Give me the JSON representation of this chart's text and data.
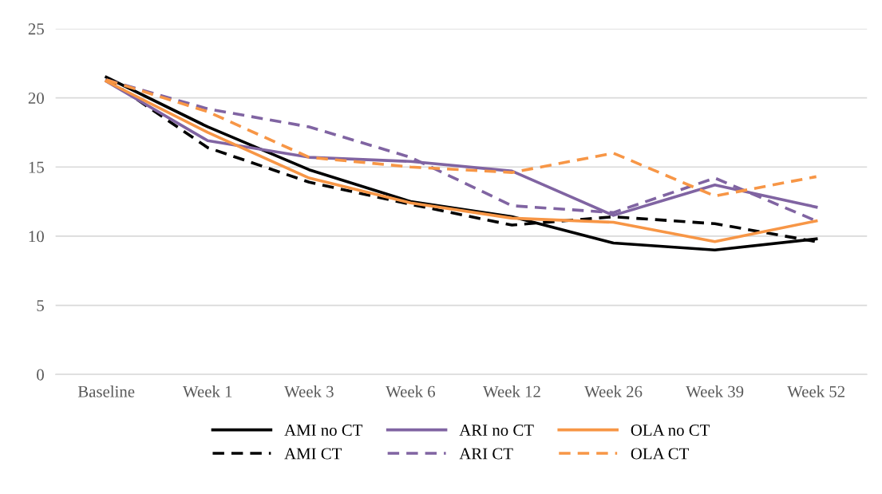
{
  "chart_data": {
    "type": "line",
    "categories": [
      "Baseline",
      "Week 1",
      "Week 3",
      "Week 6",
      "Week 12",
      "Week 26",
      "Week 39",
      "Week 52"
    ],
    "series": [
      {
        "name": "AMI no CT",
        "color": "#000000",
        "line_style": "solid",
        "values": [
          21.5,
          17.9,
          14.8,
          12.5,
          11.4,
          9.5,
          9.0,
          9.8
        ]
      },
      {
        "name": "AMI CT",
        "color": "#000000",
        "line_style": "dashed",
        "values": [
          21.4,
          16.4,
          13.9,
          12.3,
          10.8,
          11.4,
          10.9,
          9.6
        ]
      },
      {
        "name": "ARI no CT",
        "color": "#8064a2",
        "line_style": "solid",
        "values": [
          21.2,
          16.9,
          15.7,
          15.4,
          14.7,
          11.5,
          13.7,
          12.1
        ]
      },
      {
        "name": "ARI CT",
        "color": "#8064a2",
        "line_style": "dashed",
        "values": [
          21.3,
          19.2,
          17.9,
          15.7,
          12.2,
          11.7,
          14.2,
          11.1
        ]
      },
      {
        "name": "OLA no CT",
        "color": "#f79646",
        "line_style": "solid",
        "values": [
          21.2,
          17.5,
          14.2,
          12.4,
          11.3,
          11.0,
          9.6,
          11.1
        ]
      },
      {
        "name": "OLA CT",
        "color": "#f79646",
        "line_style": "dashed",
        "values": [
          21.3,
          19.0,
          15.7,
          15.0,
          14.6,
          16.0,
          12.9,
          14.3
        ]
      }
    ],
    "ylim": [
      0,
      25
    ],
    "yticks": [
      0,
      5,
      10,
      15,
      20,
      25
    ],
    "grid": "y",
    "legend": "bottom",
    "marker": "none"
  }
}
